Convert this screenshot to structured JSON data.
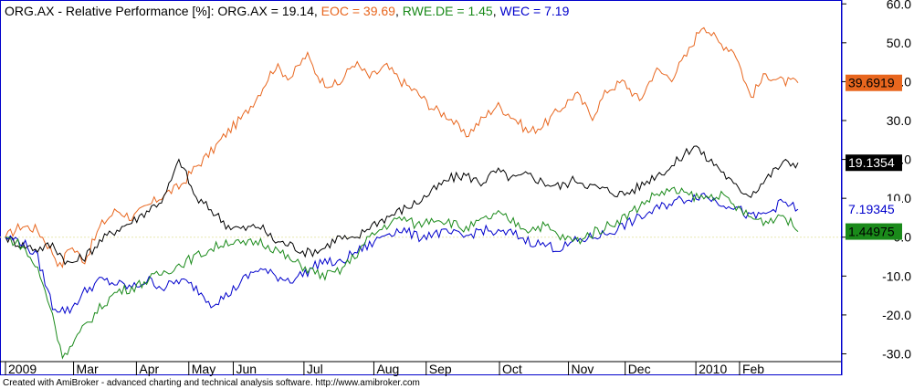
{
  "title": {
    "prefix": "ORG.AX - Relative Performance [%]: ",
    "entries": [
      {
        "text": "ORG.AX = 19.14",
        "color": "#000000"
      },
      {
        "text": "EOC = 39.69",
        "color": "#e8661e"
      },
      {
        "text": "RWE.DE = 1.45",
        "color": "#1a8a1a"
      },
      {
        "text": "WEC = 7.19",
        "color": "#0000cc"
      }
    ]
  },
  "footer": "Created with AmiBroker - advanced charting and technical analysis software. http://www.amibroker.com",
  "chart_data": {
    "type": "line",
    "ylim": [
      -32,
      61
    ],
    "yticks": [
      -30,
      -20,
      -10,
      0,
      10,
      20,
      30,
      40,
      50,
      60
    ],
    "ytick_labels": [
      "-30.0",
      "-20.0",
      "-10.0",
      "0.0",
      "10.0",
      "20.0",
      "30.0",
      "40.0",
      "50.0",
      "60.0"
    ],
    "xlim": [
      0,
      1
    ],
    "x_ticks": [
      {
        "label": "2009",
        "pos": 0.0
      },
      {
        "label": "Mar",
        "pos": 0.0859
      },
      {
        "label": "Apr",
        "pos": 0.1652
      },
      {
        "label": "May",
        "pos": 0.2313
      },
      {
        "label": "Jun",
        "pos": 0.2874
      },
      {
        "label": "Jul",
        "pos": 0.3766
      },
      {
        "label": "Aug",
        "pos": 0.4648
      },
      {
        "label": "Sep",
        "pos": 0.5308
      },
      {
        "label": "Oct",
        "pos": 0.6233
      },
      {
        "label": "Nov",
        "pos": 0.7103
      },
      {
        "label": "Dec",
        "pos": 0.7819
      },
      {
        "label": "2010",
        "pos": 0.8711
      },
      {
        "label": "Feb",
        "pos": 0.9262
      }
    ],
    "zero_line": {
      "value": 0,
      "color": "#e8e8b0"
    },
    "series": [
      {
        "name": "EOC",
        "color": "#e8661e",
        "last_label": "39.6919",
        "label_bg": "#e8661e",
        "label_fg": "#000000",
        "points": [
          [
            0,
            0
          ],
          [
            0.02,
            3
          ],
          [
            0.04,
            2
          ],
          [
            0.06,
            -4
          ],
          [
            0.07,
            -8
          ],
          [
            0.08,
            -2
          ],
          [
            0.1,
            -6
          ],
          [
            0.12,
            3
          ],
          [
            0.14,
            7
          ],
          [
            0.16,
            5
          ],
          [
            0.18,
            8
          ],
          [
            0.2,
            11
          ],
          [
            0.22,
            13
          ],
          [
            0.24,
            18
          ],
          [
            0.26,
            22
          ],
          [
            0.28,
            27
          ],
          [
            0.3,
            31
          ],
          [
            0.32,
            37
          ],
          [
            0.34,
            44
          ],
          [
            0.36,
            41
          ],
          [
            0.38,
            47
          ],
          [
            0.39,
            43
          ],
          [
            0.4,
            40
          ],
          [
            0.42,
            39
          ],
          [
            0.44,
            45
          ],
          [
            0.46,
            41
          ],
          [
            0.48,
            44
          ],
          [
            0.5,
            40
          ],
          [
            0.52,
            37
          ],
          [
            0.54,
            33
          ],
          [
            0.56,
            31
          ],
          [
            0.58,
            26
          ],
          [
            0.6,
            30
          ],
          [
            0.62,
            34
          ],
          [
            0.64,
            31
          ],
          [
            0.66,
            27
          ],
          [
            0.68,
            29
          ],
          [
            0.7,
            33
          ],
          [
            0.72,
            37
          ],
          [
            0.74,
            31
          ],
          [
            0.76,
            38
          ],
          [
            0.78,
            40
          ],
          [
            0.8,
            35
          ],
          [
            0.82,
            43
          ],
          [
            0.84,
            41
          ],
          [
            0.86,
            47
          ],
          [
            0.88,
            55
          ],
          [
            0.9,
            50
          ],
          [
            0.92,
            48
          ],
          [
            0.94,
            36
          ],
          [
            0.96,
            42
          ],
          [
            0.98,
            40
          ],
          [
            1.0,
            39.69
          ]
        ]
      },
      {
        "name": "ORG.AX",
        "color": "#000000",
        "last_label": "19.1354",
        "label_bg": "#000000",
        "label_fg": "#ffffff",
        "points": [
          [
            0,
            0
          ],
          [
            0.02,
            -2
          ],
          [
            0.04,
            -3
          ],
          [
            0.06,
            -2
          ],
          [
            0.08,
            -7
          ],
          [
            0.1,
            -5
          ],
          [
            0.12,
            -1
          ],
          [
            0.14,
            2
          ],
          [
            0.16,
            4
          ],
          [
            0.18,
            7
          ],
          [
            0.2,
            10
          ],
          [
            0.21,
            15
          ],
          [
            0.22,
            20
          ],
          [
            0.23,
            15
          ],
          [
            0.24,
            10
          ],
          [
            0.26,
            7
          ],
          [
            0.28,
            3
          ],
          [
            0.3,
            2
          ],
          [
            0.32,
            3
          ],
          [
            0.34,
            -1
          ],
          [
            0.36,
            -2
          ],
          [
            0.38,
            -4
          ],
          [
            0.4,
            -3
          ],
          [
            0.42,
            0
          ],
          [
            0.44,
            -1
          ],
          [
            0.46,
            3
          ],
          [
            0.48,
            5
          ],
          [
            0.5,
            7
          ],
          [
            0.52,
            9
          ],
          [
            0.54,
            12
          ],
          [
            0.56,
            15
          ],
          [
            0.58,
            16
          ],
          [
            0.6,
            14
          ],
          [
            0.62,
            17
          ],
          [
            0.64,
            15
          ],
          [
            0.66,
            16
          ],
          [
            0.68,
            14
          ],
          [
            0.7,
            13
          ],
          [
            0.72,
            15
          ],
          [
            0.74,
            13
          ],
          [
            0.76,
            12
          ],
          [
            0.78,
            11
          ],
          [
            0.8,
            13
          ],
          [
            0.82,
            16
          ],
          [
            0.84,
            18
          ],
          [
            0.86,
            22
          ],
          [
            0.87,
            24
          ],
          [
            0.88,
            21
          ],
          [
            0.9,
            18
          ],
          [
            0.92,
            13
          ],
          [
            0.94,
            11
          ],
          [
            0.96,
            15
          ],
          [
            0.98,
            19
          ],
          [
            1.0,
            19.14
          ]
        ]
      },
      {
        "name": "WEC",
        "color": "#0000cc",
        "last_label": "7.19345",
        "label_bg": "#ffffff",
        "label_fg": "#0000cc",
        "points": [
          [
            0,
            0
          ],
          [
            0.02,
            -1
          ],
          [
            0.04,
            -5
          ],
          [
            0.06,
            -18
          ],
          [
            0.08,
            -19
          ],
          [
            0.1,
            -14
          ],
          [
            0.12,
            -11
          ],
          [
            0.14,
            -12
          ],
          [
            0.16,
            -13
          ],
          [
            0.18,
            -11
          ],
          [
            0.2,
            -13
          ],
          [
            0.22,
            -11
          ],
          [
            0.24,
            -13
          ],
          [
            0.26,
            -17
          ],
          [
            0.28,
            -15
          ],
          [
            0.3,
            -11
          ],
          [
            0.32,
            -8
          ],
          [
            0.34,
            -10
          ],
          [
            0.36,
            -11
          ],
          [
            0.38,
            -9
          ],
          [
            0.4,
            -6
          ],
          [
            0.42,
            -7
          ],
          [
            0.44,
            -4
          ],
          [
            0.46,
            -2
          ],
          [
            0.48,
            1
          ],
          [
            0.5,
            2
          ],
          [
            0.52,
            0
          ],
          [
            0.54,
            1
          ],
          [
            0.56,
            1
          ],
          [
            0.58,
            0
          ],
          [
            0.6,
            2
          ],
          [
            0.62,
            1
          ],
          [
            0.64,
            1
          ],
          [
            0.66,
            -1
          ],
          [
            0.68,
            -2
          ],
          [
            0.7,
            -3
          ],
          [
            0.72,
            -1
          ],
          [
            0.74,
            0
          ],
          [
            0.76,
            1
          ],
          [
            0.78,
            3
          ],
          [
            0.8,
            5
          ],
          [
            0.82,
            7
          ],
          [
            0.84,
            9
          ],
          [
            0.86,
            10
          ],
          [
            0.88,
            11
          ],
          [
            0.9,
            9
          ],
          [
            0.92,
            8
          ],
          [
            0.94,
            5
          ],
          [
            0.96,
            6
          ],
          [
            0.98,
            9
          ],
          [
            1.0,
            7.19
          ]
        ]
      },
      {
        "name": "RWE.DE",
        "color": "#1a8a1a",
        "last_label": "1.44975",
        "label_bg": "#1a8a1a",
        "label_fg": "#000000",
        "points": [
          [
            0,
            0
          ],
          [
            0.02,
            -2
          ],
          [
            0.04,
            -8
          ],
          [
            0.06,
            -20
          ],
          [
            0.07,
            -30
          ],
          [
            0.08,
            -29
          ],
          [
            0.1,
            -23
          ],
          [
            0.12,
            -18
          ],
          [
            0.14,
            -14
          ],
          [
            0.16,
            -13
          ],
          [
            0.18,
            -11
          ],
          [
            0.2,
            -9
          ],
          [
            0.22,
            -7
          ],
          [
            0.24,
            -5
          ],
          [
            0.26,
            -3
          ],
          [
            0.28,
            -1
          ],
          [
            0.3,
            -2
          ],
          [
            0.32,
            -1
          ],
          [
            0.34,
            -3
          ],
          [
            0.36,
            -6
          ],
          [
            0.38,
            -8
          ],
          [
            0.4,
            -10
          ],
          [
            0.42,
            -9
          ],
          [
            0.44,
            -5
          ],
          [
            0.46,
            0
          ],
          [
            0.48,
            3
          ],
          [
            0.5,
            5
          ],
          [
            0.52,
            3
          ],
          [
            0.54,
            5
          ],
          [
            0.56,
            4
          ],
          [
            0.58,
            2
          ],
          [
            0.6,
            4
          ],
          [
            0.62,
            6
          ],
          [
            0.64,
            4
          ],
          [
            0.66,
            2
          ],
          [
            0.68,
            3
          ],
          [
            0.7,
            0
          ],
          [
            0.72,
            -1
          ],
          [
            0.74,
            1
          ],
          [
            0.76,
            3
          ],
          [
            0.78,
            5
          ],
          [
            0.8,
            8
          ],
          [
            0.82,
            11
          ],
          [
            0.84,
            12
          ],
          [
            0.86,
            11
          ],
          [
            0.88,
            10
          ],
          [
            0.9,
            11
          ],
          [
            0.92,
            8
          ],
          [
            0.94,
            5
          ],
          [
            0.96,
            4
          ],
          [
            0.98,
            6
          ],
          [
            1.0,
            1.45
          ]
        ]
      }
    ]
  }
}
